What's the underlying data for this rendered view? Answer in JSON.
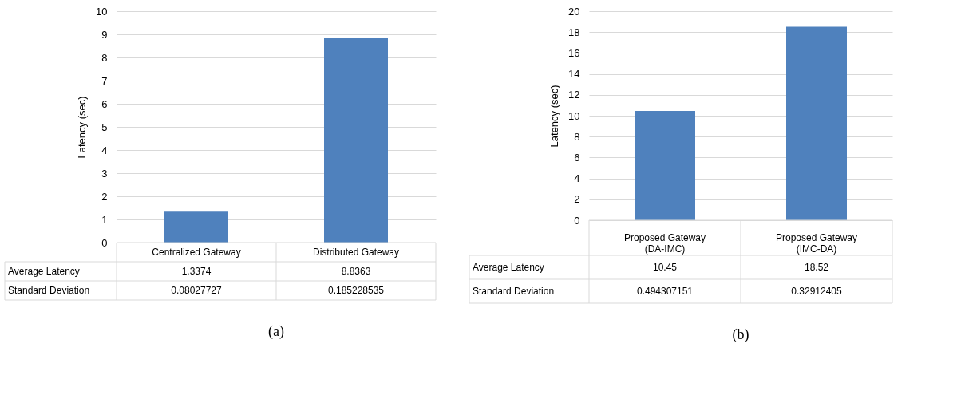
{
  "chart_data": [
    {
      "type": "bar",
      "title": "(a)",
      "ylabel": "Latency (sec)",
      "categories": [
        "Centralized Gateway",
        "Distributed Gateway"
      ],
      "series": [
        {
          "name": "Average Latency",
          "color": "#4f81bd",
          "values": [
            1.3374,
            8.8363
          ]
        }
      ],
      "data_labels": true,
      "annotations": [
        "Standard Deviation",
        "0.08027727",
        "0.185228535"
      ],
      "ylim": [
        0,
        10
      ],
      "yticks": [
        0,
        1,
        2,
        3,
        4,
        5,
        6,
        7,
        8,
        9,
        10
      ],
      "grid": "y"
    },
    {
      "type": "bar",
      "title": "(b)",
      "ylabel": "Latency (sec)",
      "categories": [
        "Proposed Gateway\n(DA-IMC)",
        "Proposed Gateway\n(IMC-DA)"
      ],
      "series": [
        {
          "name": "Average Latency",
          "color": "#4f81bd",
          "values": [
            10.45,
            18.52
          ]
        }
      ],
      "data_labels": true,
      "annotations": [
        "Standard Deviation",
        "0.494307151",
        "0.32912405"
      ],
      "ylim": [
        0,
        20
      ],
      "yticks": [
        0,
        2,
        4,
        6,
        8,
        10,
        12,
        14,
        16,
        18,
        20
      ],
      "grid": "y"
    }
  ]
}
